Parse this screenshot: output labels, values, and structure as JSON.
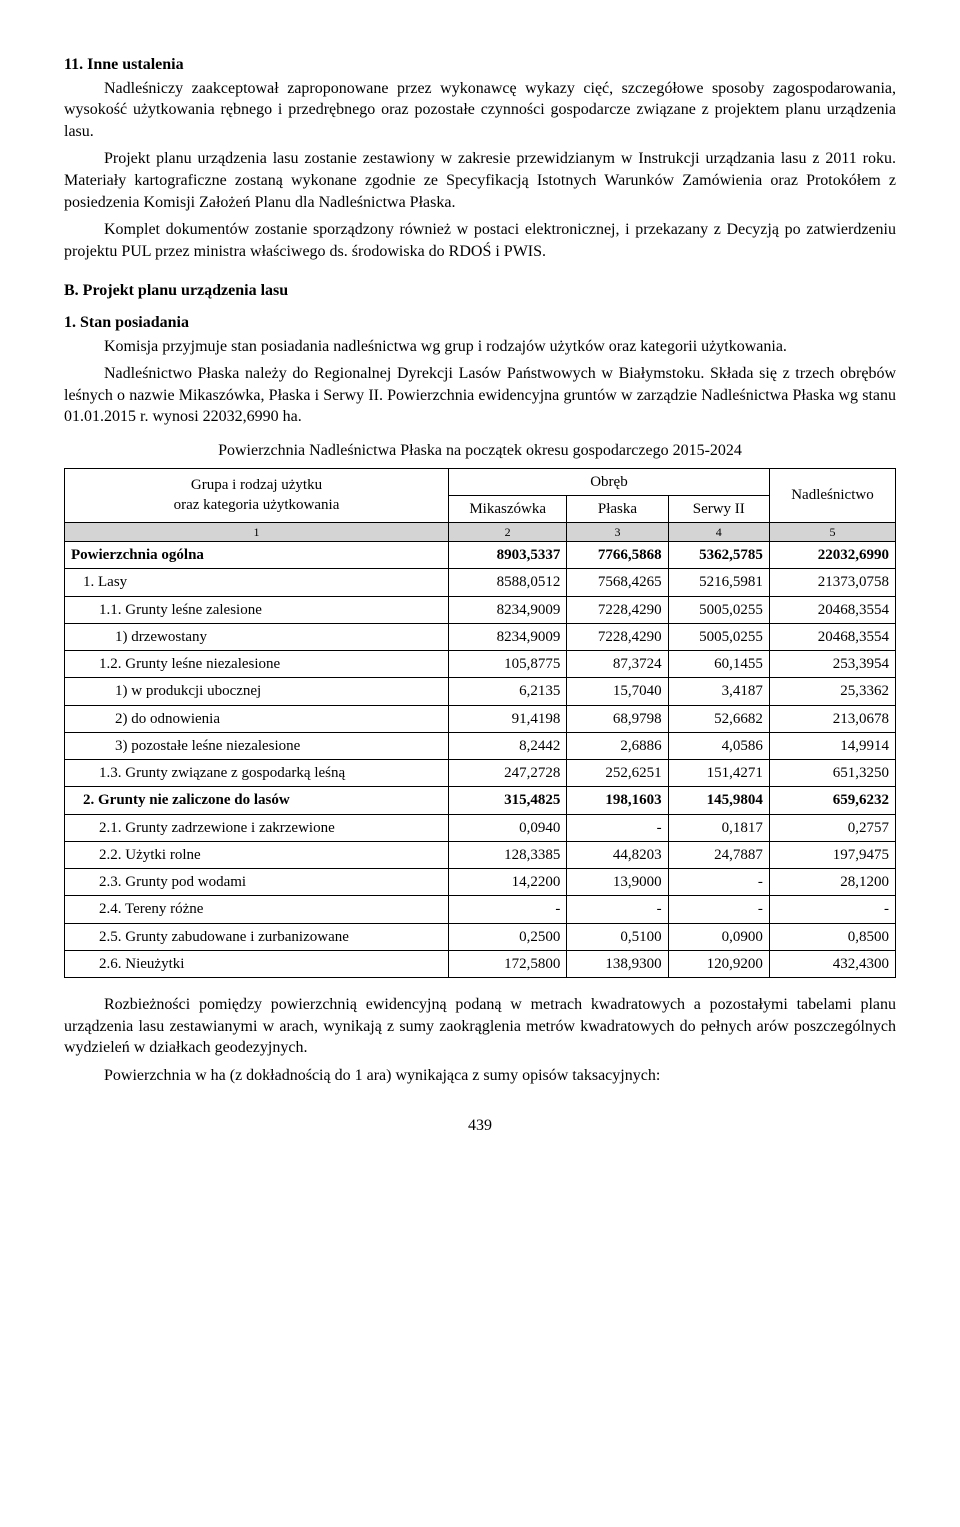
{
  "sections": {
    "s11_title": "11. Inne ustalenia",
    "s11_p1": "Nadleśniczy zaakceptował zaproponowane przez wykonawcę wykazy cięć, szczegółowe sposoby zagospodarowania, wysokość użytkowania rębnego i przedrębnego oraz pozostałe czynności gospodarcze związane z projektem planu urządzenia lasu.",
    "s11_p2": "Projekt planu urządzenia lasu zostanie zestawiony w zakresie przewidzianym w Instrukcji urządzania lasu z 2011 roku. Materiały kartograficzne zostaną wykonane zgodnie ze Specyfikacją Istotnych Warunków Zamówienia oraz Protokółem z posiedzenia Komisji Założeń Planu dla Nadleśnictwa Płaska.",
    "s11_p3": "Komplet dokumentów zostanie sporządzony również w postaci elektronicznej, i przekazany z Decyzją po zatwierdzeniu projektu PUL przez ministra właściwego ds. środowiska do RDOŚ i PWIS.",
    "partB_title": "B. Projekt planu urządzenia lasu",
    "s1_title": "1. Stan posiadania",
    "s1_p1": "Komisja przyjmuje stan posiadania nadleśnictwa wg grup i rodzajów użytków oraz kategorii użytkowania.",
    "s1_p2": "Nadleśnictwo Płaska należy do Regionalnej Dyrekcji Lasów Państwowych w Białymstoku. Składa się z trzech obrębów leśnych o nazwie Mikaszówka, Płaska i Serwy II. Powierzchnia ewidencyjna gruntów w zarządzie Nadleśnictwa Płaska wg stanu 01.01.2015 r. wynosi 22032,6990 ha.",
    "table_title": "Powierzchnia Nadleśnictwa Płaska na początek okresu gospodarczego 2015-2024",
    "footer_p1": "Rozbieżności pomiędzy powierzchnią ewidencyjną podaną w metrach kwadratowych a pozostałymi tabelami planu urządzenia lasu zestawianymi w arach, wynikają z sumy zaokrąglenia metrów kwadratowych do pełnych arów poszczególnych wydzieleń w działkach geodezyjnych.",
    "footer_p2": "Powierzchnia w ha (z dokładnością do 1 ara) wynikająca z sumy opisów taksacyjnych:"
  },
  "table": {
    "header": {
      "col1_line1": "Grupa i rodzaj użytku",
      "col1_line2": "oraz kategoria użytkowania",
      "obreb_label": "Obręb",
      "mikaszowka": "Mikaszówka",
      "plaska": "Płaska",
      "serwy": "Serwy II",
      "nadlesnictwo": "Nadleśnictwo",
      "n1": "1",
      "n2": "2",
      "n3": "3",
      "n4": "4",
      "n5": "5"
    },
    "rows": [
      {
        "label": "Powierzchnia ogólna",
        "c2": "8903,5337",
        "c3": "7766,5868",
        "c4": "5362,5785",
        "c5": "22032,6990",
        "bold": true,
        "dashedBelow": true,
        "indent": 0
      },
      {
        "label": "1. Lasy",
        "c2": "8588,0512",
        "c3": "7568,4265",
        "c4": "5216,5981",
        "c5": "21373,0758",
        "bold": false,
        "dashedBelow": true,
        "indent": 1
      },
      {
        "label": "1.1. Grunty leśne zalesione",
        "c2": "8234,9009",
        "c3": "7228,4290",
        "c4": "5005,0255",
        "c5": "20468,3554",
        "bold": false,
        "dashedBelow": true,
        "indent": 2
      },
      {
        "label": "1) drzewostany",
        "c2": "8234,9009",
        "c3": "7228,4290",
        "c4": "5005,0255",
        "c5": "20468,3554",
        "bold": false,
        "dashedBelow": true,
        "indent": 3
      },
      {
        "label": "1.2. Grunty leśne niezalesione",
        "c2": "105,8775",
        "c3": "87,3724",
        "c4": "60,1455",
        "c5": "253,3954",
        "bold": false,
        "dashedBelow": true,
        "indent": 2
      },
      {
        "label": "1) w produkcji ubocznej",
        "c2": "6,2135",
        "c3": "15,7040",
        "c4": "3,4187",
        "c5": "25,3362",
        "bold": false,
        "dashedBelow": true,
        "indent": 3
      },
      {
        "label": "2) do odnowienia",
        "c2": "91,4198",
        "c3": "68,9798",
        "c4": "52,6682",
        "c5": "213,0678",
        "bold": false,
        "dashedBelow": true,
        "indent": 3
      },
      {
        "label": "3) pozostałe leśne niezalesione",
        "c2": "8,2442",
        "c3": "2,6886",
        "c4": "4,0586",
        "c5": "14,9914",
        "bold": false,
        "dashedBelow": true,
        "indent": 3
      },
      {
        "label": "1.3. Grunty związane z gospodarką leśną",
        "c2": "247,2728",
        "c3": "252,6251",
        "c4": "151,4271",
        "c5": "651,3250",
        "bold": false,
        "dashedBelow": false,
        "indent": 2
      },
      {
        "label": "2. Grunty nie zaliczone do lasów",
        "c2": "315,4825",
        "c3": "198,1603",
        "c4": "145,9804",
        "c5": "659,6232",
        "bold": true,
        "dashedBelow": true,
        "indent": 1
      },
      {
        "label": "2.1. Grunty zadrzewione i zakrzewione",
        "c2": "0,0940",
        "c3": "-",
        "c4": "0,1817",
        "c5": "0,2757",
        "bold": false,
        "dashedBelow": false,
        "indent": 2
      },
      {
        "label": "2.2. Użytki rolne",
        "c2": "128,3385",
        "c3": "44,8203",
        "c4": "24,7887",
        "c5": "197,9475",
        "bold": false,
        "dashedBelow": false,
        "indent": 2
      },
      {
        "label": "2.3. Grunty pod wodami",
        "c2": "14,2200",
        "c3": "13,9000",
        "c4": "-",
        "c5": "28,1200",
        "bold": false,
        "dashedBelow": false,
        "indent": 2
      },
      {
        "label": "2.4. Tereny różne",
        "c2": "-",
        "c3": "-",
        "c4": "-",
        "c5": "-",
        "bold": false,
        "dashedBelow": false,
        "indent": 2
      },
      {
        "label": "2.5. Grunty zabudowane i zurbanizowane",
        "c2": "0,2500",
        "c3": "0,5100",
        "c4": "0,0900",
        "c5": "0,8500",
        "bold": false,
        "dashedBelow": false,
        "indent": 2
      },
      {
        "label": "2.6. Nieużytki",
        "c2": "172,5800",
        "c3": "138,9300",
        "c4": "120,9200",
        "c5": "432,4300",
        "bold": false,
        "dashedBelow": false,
        "indent": 2
      }
    ]
  },
  "page_number": "439"
}
